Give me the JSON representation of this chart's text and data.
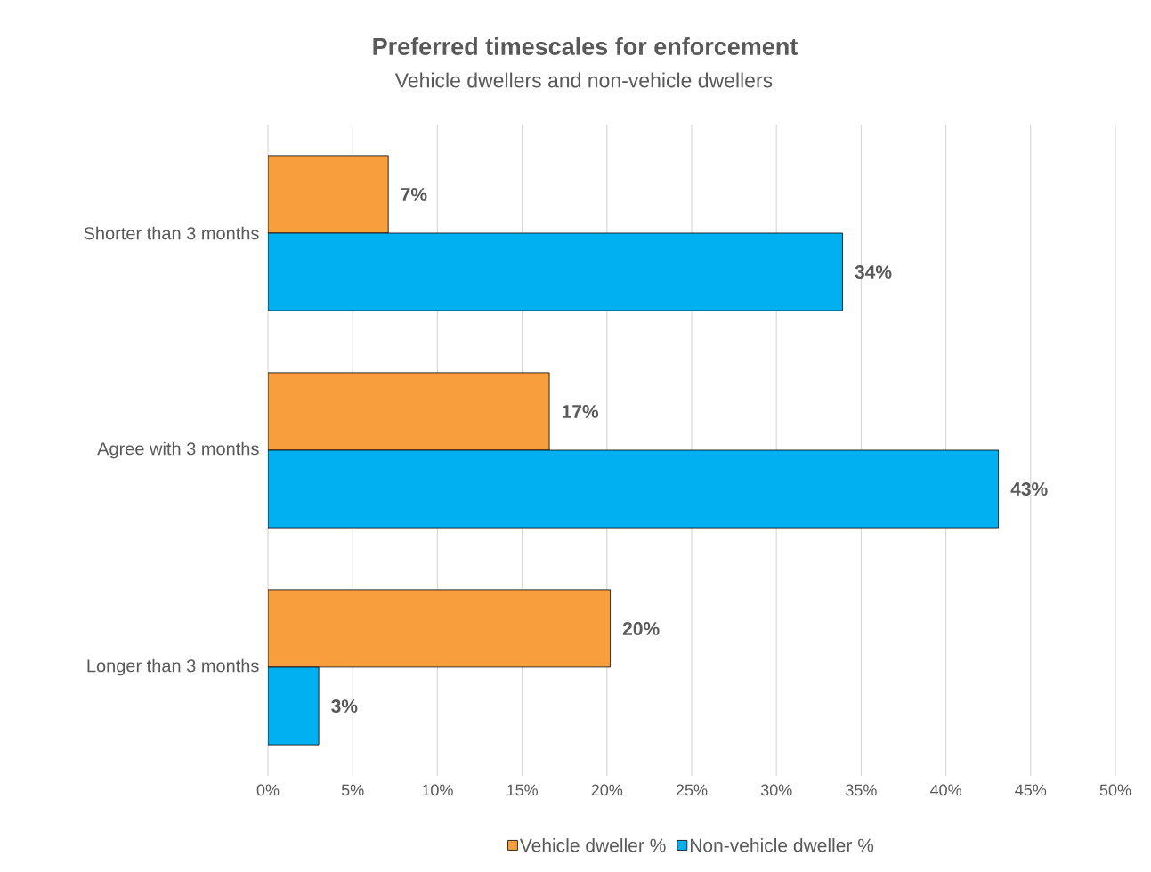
{
  "chart_data": {
    "type": "bar",
    "orientation": "horizontal",
    "title": "Preferred timescales for enforcement",
    "subtitle": "Vehicle dwellers and non-vehicle dwellers",
    "categories": [
      "Shorter than 3 months",
      "Agree with 3 months",
      "Longer than 3 months"
    ],
    "series": [
      {
        "name": "Vehicle dweller %",
        "color": "#f89e3c",
        "values": [
          7.1,
          16.6,
          20.2
        ],
        "value_labels": [
          "7%",
          "17%",
          "20%"
        ]
      },
      {
        "name": "Non-vehicle dweller %",
        "color": "#00b0f0",
        "values": [
          33.9,
          43.1,
          3.0
        ],
        "value_labels": [
          "34%",
          "43%",
          "3%"
        ]
      }
    ],
    "xlim": [
      0,
      50
    ],
    "xticks": [
      {
        "value": 0,
        "label": "0%"
      },
      {
        "value": 5,
        "label": "5%"
      },
      {
        "value": 10,
        "label": "10%"
      },
      {
        "value": 15,
        "label": "15%"
      },
      {
        "value": 20,
        "label": "20%"
      },
      {
        "value": 25,
        "label": "25%"
      },
      {
        "value": 30,
        "label": "30%"
      },
      {
        "value": 35,
        "label": "35%"
      },
      {
        "value": 40,
        "label": "40%"
      },
      {
        "value": 45,
        "label": "45%"
      },
      {
        "value": 50,
        "label": "50%"
      }
    ],
    "grid": "x",
    "legend": "bottom"
  }
}
